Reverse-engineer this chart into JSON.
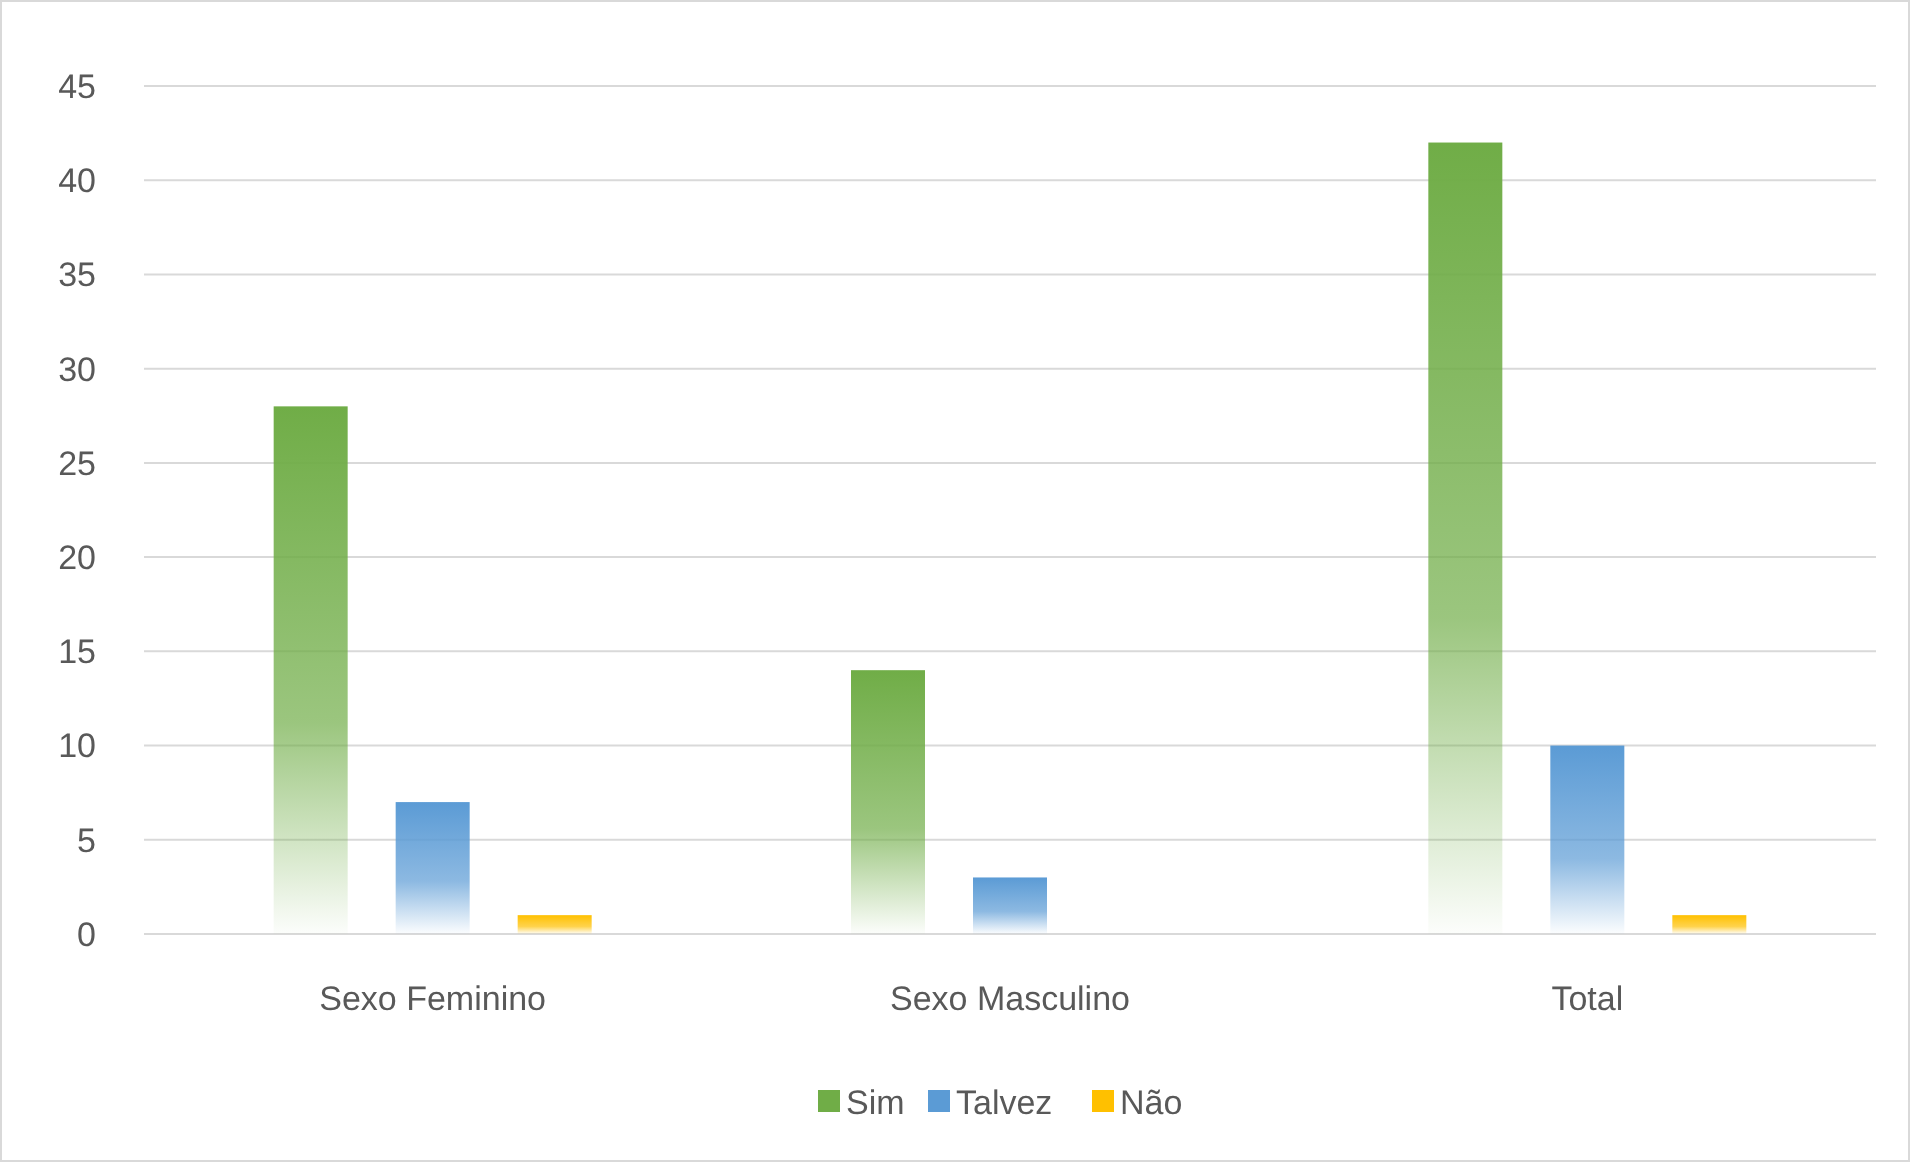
{
  "chart_data": {
    "type": "bar",
    "categories": [
      "Sexo Feminino",
      "Sexo Masculino",
      "Total"
    ],
    "series": [
      {
        "name": "Sim",
        "color": "#70ad47",
        "values": [
          28,
          14,
          42
        ]
      },
      {
        "name": "Talvez",
        "color": "#5b9bd5",
        "values": [
          7,
          3,
          10
        ]
      },
      {
        "name": "Não",
        "color": "#ffc000",
        "values": [
          1,
          0,
          1
        ]
      }
    ],
    "ylim": [
      0,
      45
    ],
    "yticks": [
      0,
      5,
      10,
      15,
      20,
      25,
      30,
      35,
      40,
      45
    ],
    "grid": "y",
    "legend": "bottom"
  }
}
